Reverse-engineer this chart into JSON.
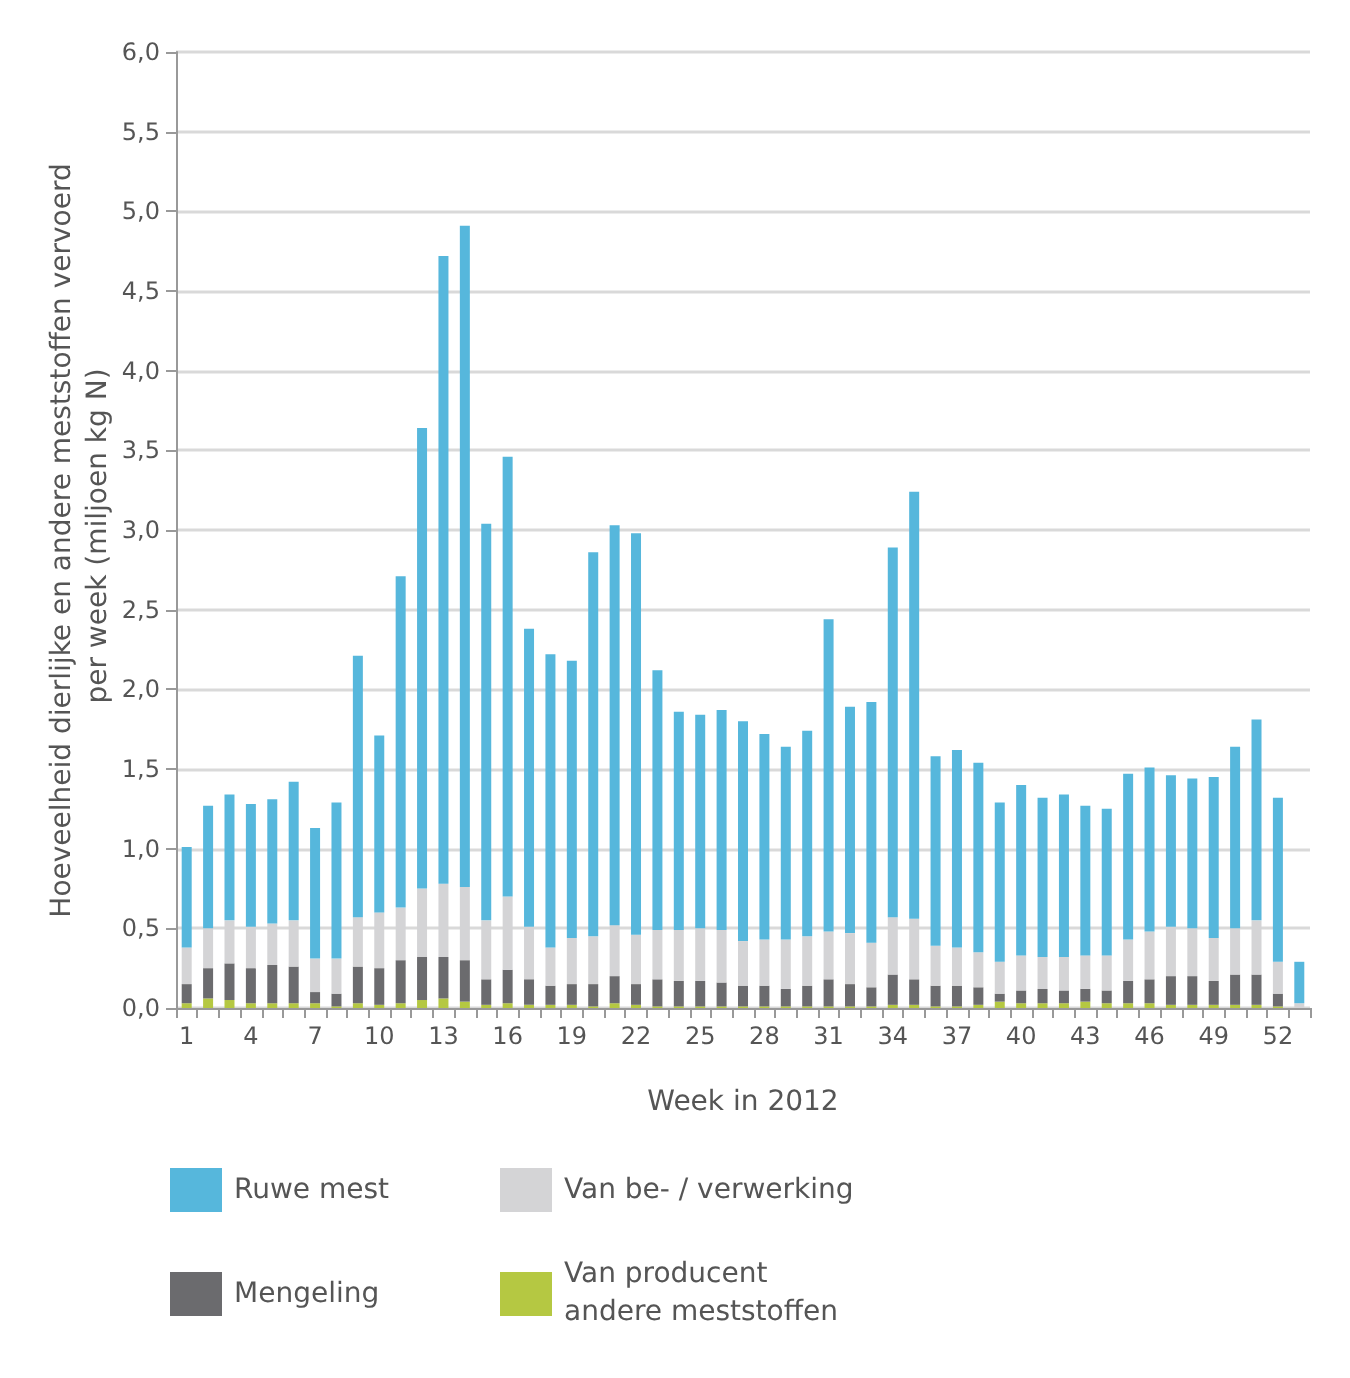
{
  "chart_data": {
    "type": "bar",
    "stacked": true,
    "xlabel": "Week in 2012",
    "ylabel": "Hoeveelheid dierlijke en andere meststoffen vervoerd per week (miljoen kg N)",
    "categories": [
      "1",
      null,
      null,
      "4",
      null,
      null,
      "7",
      null,
      null,
      "10",
      null,
      null,
      "13",
      null,
      null,
      "16",
      null,
      null,
      "19",
      null,
      null,
      "22",
      null,
      null,
      "25",
      null,
      null,
      "28",
      null,
      null,
      "31",
      null,
      null,
      "34",
      null,
      null,
      "37",
      null,
      null,
      "40",
      null,
      null,
      "43",
      null,
      null,
      "46",
      null,
      null,
      "49",
      null,
      null,
      "52",
      null
    ],
    "series": [
      {
        "name": "Van producent andere meststoffen",
        "color": "#b5c842",
        "values": [
          0.03,
          0.06,
          0.05,
          0.03,
          0.03,
          0.03,
          0.03,
          0.01,
          0.03,
          0.02,
          0.03,
          0.05,
          0.06,
          0.04,
          0.02,
          0.03,
          0.02,
          0.02,
          0.02,
          0.01,
          0.03,
          0.02,
          0.01,
          0.01,
          0.01,
          0.01,
          0.01,
          0.01,
          0.01,
          0.01,
          0.01,
          0.01,
          0.01,
          0.02,
          0.02,
          0.01,
          0.01,
          0.02,
          0.04,
          0.03,
          0.03,
          0.03,
          0.04,
          0.03,
          0.03,
          0.03,
          0.02,
          0.02,
          0.02,
          0.02,
          0.02,
          0.01,
          0.0
        ]
      },
      {
        "name": "Mengeling",
        "color": "#6b6b6e",
        "values": [
          0.12,
          0.19,
          0.23,
          0.22,
          0.24,
          0.23,
          0.07,
          0.08,
          0.23,
          0.23,
          0.27,
          0.27,
          0.26,
          0.26,
          0.16,
          0.21,
          0.16,
          0.12,
          0.13,
          0.14,
          0.17,
          0.13,
          0.17,
          0.16,
          0.16,
          0.15,
          0.13,
          0.13,
          0.11,
          0.13,
          0.17,
          0.14,
          0.12,
          0.19,
          0.16,
          0.13,
          0.13,
          0.11,
          0.05,
          0.08,
          0.09,
          0.08,
          0.08,
          0.08,
          0.14,
          0.15,
          0.18,
          0.18,
          0.15,
          0.19,
          0.19,
          0.08,
          null
        ]
      },
      {
        "name": "Van be- / verwerking",
        "color": "#d4d4d6",
        "values": [
          0.23,
          0.25,
          0.27,
          0.26,
          0.26,
          0.29,
          0.21,
          0.22,
          0.31,
          0.35,
          0.33,
          0.43,
          0.46,
          0.46,
          0.37,
          0.46,
          0.33,
          0.24,
          0.29,
          0.3,
          0.32,
          0.31,
          0.31,
          0.32,
          0.33,
          0.33,
          0.28,
          0.29,
          0.31,
          0.31,
          0.3,
          0.32,
          0.28,
          0.36,
          0.38,
          0.25,
          0.24,
          0.22,
          0.2,
          0.22,
          0.2,
          0.21,
          0.21,
          0.22,
          0.26,
          0.3,
          0.31,
          0.3,
          0.27,
          0.29,
          0.34,
          0.2,
          0.03
        ]
      },
      {
        "name": "Ruwe mest",
        "color": "#56b7dc",
        "values": [
          0.63,
          0.77,
          0.79,
          0.77,
          0.78,
          0.87,
          0.82,
          0.98,
          1.64,
          1.11,
          2.08,
          2.89,
          3.94,
          4.15,
          2.49,
          2.76,
          1.87,
          1.84,
          1.74,
          2.41,
          2.51,
          2.52,
          1.63,
          1.37,
          1.34,
          1.38,
          1.38,
          1.29,
          1.21,
          1.29,
          1.96,
          1.42,
          1.51,
          2.32,
          2.68,
          1.19,
          1.24,
          1.19,
          1.0,
          1.07,
          1.0,
          1.02,
          0.94,
          0.92,
          1.04,
          1.03,
          0.95,
          0.94,
          1.01,
          1.14,
          1.26,
          1.03,
          0.26
        ]
      }
    ],
    "ylim": [
      0,
      6
    ],
    "yticks": [
      {
        "value": 0,
        "label": "0,0"
      },
      {
        "value": 0.5,
        "label": "0,5"
      },
      {
        "value": 1,
        "label": "1,0"
      },
      {
        "value": 1.5,
        "label": "1,5"
      },
      {
        "value": 2,
        "label": "2,0"
      },
      {
        "value": 2.5,
        "label": "2,5"
      },
      {
        "value": 3,
        "label": "3,0"
      },
      {
        "value": 3.5,
        "label": "3,5"
      },
      {
        "value": 4,
        "label": "4,0"
      },
      {
        "value": 4.5,
        "label": "4,5"
      },
      {
        "value": 5,
        "label": "5,0"
      },
      {
        "value": 5.5,
        "label": "5,5"
      },
      {
        "value": 6,
        "label": "6,0"
      }
    ],
    "grid": "y",
    "legend": "bottom"
  }
}
